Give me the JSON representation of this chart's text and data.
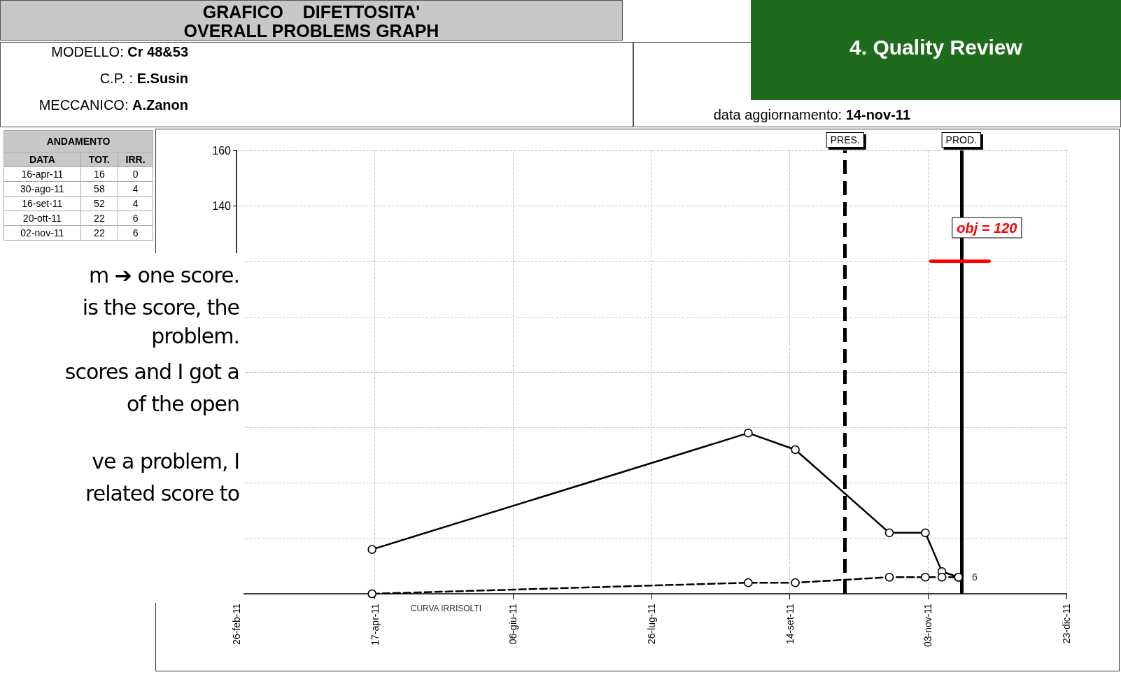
{
  "chart_data": {
    "type": "line",
    "title": "GRAFICO    DIFETTOSITA'",
    "subtitle": "OVERALL PROBLEMS GRAPH",
    "x": [
      "2011-04-16",
      "2011-08-30",
      "2011-09-16",
      "2011-10-20",
      "2011-11-02",
      "2011-11-08",
      "2011-11-14"
    ],
    "series": [
      {
        "color": "#000000",
        "values": [
          16,
          58,
          52,
          22,
          22,
          8,
          6
        ],
        "line_style": "solid",
        "marker": "circle"
      },
      {
        "name": "CURVA IRRISOLTI",
        "color": "#000000",
        "values": [
          0,
          4,
          4,
          6,
          6,
          6,
          6
        ],
        "line_style": "dashed",
        "marker": "circle",
        "value_labels": [
          null,
          null,
          null,
          null,
          null,
          null,
          "6"
        ]
      },
      {
        "color": "#ff0000",
        "x": [
          "2011-11-04",
          "2011-11-25"
        ],
        "values": [
          120,
          120
        ],
        "line_style": "solid",
        "marker": "none"
      }
    ],
    "xlim": [
      "2011-02-26",
      "2011-12-23"
    ],
    "xticks": [
      {
        "value": "2011-02-26",
        "label": "26-feb-11"
      },
      {
        "value": "2011-04-17",
        "label": "17-apr-11"
      },
      {
        "value": "2011-06-06",
        "label": "06-giu-11"
      },
      {
        "value": "2011-07-26",
        "label": "26-lug-11"
      },
      {
        "value": "2011-09-14",
        "label": "14-set-11"
      },
      {
        "value": "2011-11-03",
        "label": "03-nov-11"
      },
      {
        "value": "2011-12-23",
        "label": "23-dic-11"
      }
    ],
    "ylim": [
      0,
      160
    ],
    "yticks": [
      {
        "value": 0,
        "label": null
      },
      {
        "value": 20,
        "label": null
      },
      {
        "value": 40,
        "label": null
      },
      {
        "value": 60,
        "label": null
      },
      {
        "value": 80,
        "label": null
      },
      {
        "value": 100,
        "label": null
      },
      {
        "value": 120,
        "label": null
      },
      140,
      160
    ],
    "grid": true,
    "ref_lines": [
      {
        "axis": "x",
        "value": "2011-10-04",
        "label": "PRES.",
        "color": "#000000",
        "line_style": "dashed"
      },
      {
        "axis": "x",
        "value": "2011-11-15",
        "label": "PROD.",
        "color": "#000000",
        "line_style": "solid"
      }
    ],
    "annotations": [
      {
        "text": "obj = 120",
        "x": "2011-11-25",
        "y": 120
      },
      "MODELLO: Cr 48&53",
      "C.P. : E.Susin",
      "MECCANICO: A.Zanon",
      "data aggiornamento: 14-nov-11",
      "4. Quality Review",
      "ANDAMENTO",
      "DATA TOT. IRR.",
      "16-apr-11 16 0",
      "30-ago-11 58 4",
      "16-set-11 52 4",
      "20-ott-11 22 6",
      "02-nov-11 22 6",
      "m ➔ one score.",
      "is the score, the",
      "problem.",
      "scores and I got a",
      "of the open",
      "ve a problem, I",
      "related score to"
    ]
  }
}
